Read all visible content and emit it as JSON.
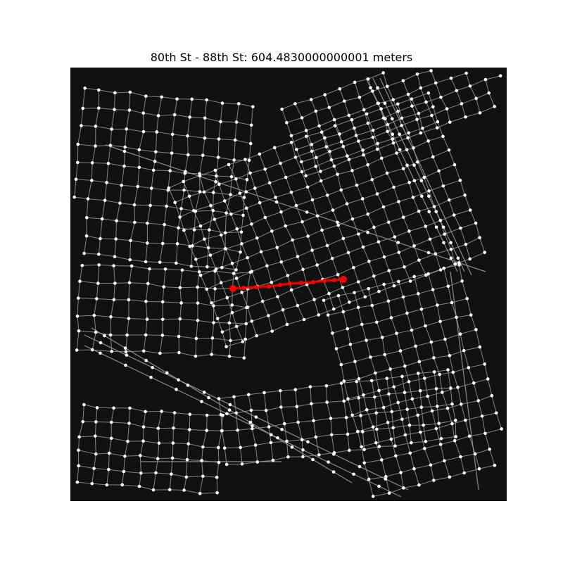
{
  "title": "80th St - 88th St: 604.4830000000001 meters",
  "colors": {
    "background": "#111111",
    "streets": "#999999",
    "nodes": "#ffffff",
    "route": "#ff0000"
  },
  "route": {
    "from": "80th St",
    "to": "88th St",
    "distance_meters": 604.4830000000001
  }
}
